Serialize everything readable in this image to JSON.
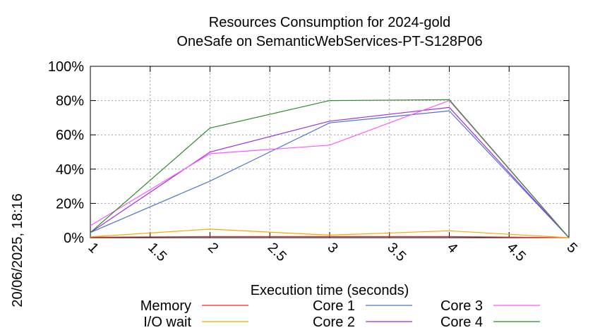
{
  "chart_data": {
    "type": "line",
    "title": "Resources Consumption for 2024-gold",
    "subtitle": "OneSafe on SemanticWebServices-PT-S128P06",
    "xlabel": "Execution time (seconds)",
    "ylabel": "",
    "side_label": "20/06/2025, 18:16",
    "xlim": [
      1,
      5
    ],
    "ylim": [
      0,
      100
    ],
    "x_ticks": [
      "1",
      "1.5",
      "2",
      "2.5",
      "3",
      "3.5",
      "4",
      "4.5",
      "5"
    ],
    "x_tick_values": [
      1,
      1.5,
      2,
      2.5,
      3,
      3.5,
      4,
      4.5,
      5
    ],
    "y_ticks": [
      "0%",
      "20%",
      "40%",
      "60%",
      "80%",
      "100%"
    ],
    "y_tick_values": [
      0,
      20,
      40,
      60,
      80,
      100
    ],
    "grid": true,
    "legend_placement": "bottom",
    "series": [
      {
        "name": "Memory",
        "color": "#ff2020",
        "x": [
          1,
          2,
          3,
          4,
          5
        ],
        "values": [
          0.3,
          0.6,
          0.6,
          0.6,
          0
        ]
      },
      {
        "name": "I/O wait",
        "color": "#ffa500",
        "x": [
          1,
          2,
          3,
          4,
          5
        ],
        "values": [
          0.5,
          5,
          1.5,
          4,
          0
        ]
      },
      {
        "name": "Core 1",
        "color": "#4a74d0",
        "x": [
          1,
          2,
          3,
          4,
          5
        ],
        "values": [
          3,
          33,
          67,
          74,
          0
        ]
      },
      {
        "name": "Core 2",
        "color": "#9a32e6",
        "x": [
          1,
          2,
          3,
          4,
          5
        ],
        "values": [
          3,
          50,
          68,
          76,
          0
        ]
      },
      {
        "name": "Core 3",
        "color": "#ff55ff",
        "x": [
          1,
          2,
          3,
          4,
          5
        ],
        "values": [
          7,
          49,
          54,
          80,
          0
        ]
      },
      {
        "name": "Core 4",
        "color": "#2e8b2e",
        "x": [
          1,
          2,
          3,
          4,
          5
        ],
        "values": [
          3,
          64,
          80,
          80.5,
          0
        ]
      }
    ]
  }
}
